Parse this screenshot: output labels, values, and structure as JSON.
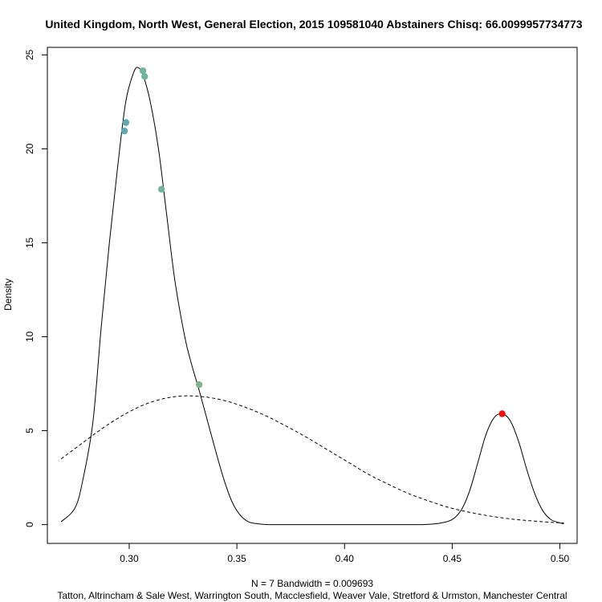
{
  "chart_data": {
    "type": "line",
    "title": "United Kingdom, North West, General Election, 2015 109581040 Abstainers Chisq: 66.0099957734773",
    "ylabel": "Density",
    "xlabel_line1": "N = 7   Bandwidth = 0.009693",
    "xlabel_line2": "Tatton, Altrincham & Sale West, Warrington South, Macclesfield, Weaver Vale, Stretford & Urmston, Manchester Central",
    "xlim": [
      0.262,
      0.508
    ],
    "ylim": [
      -1.0,
      25.4
    ],
    "x_ticks": [
      0.3,
      0.35,
      0.4,
      0.45,
      0.5
    ],
    "x_tick_labels": [
      "0.30",
      "0.35",
      "0.40",
      "0.45",
      "0.50"
    ],
    "y_ticks": [
      0,
      5,
      10,
      15,
      20,
      25
    ],
    "y_tick_labels": [
      "0",
      "5",
      "10",
      "15",
      "20",
      "25"
    ],
    "kde_solid": {
      "x": [
        0.2684,
        0.2749,
        0.2787,
        0.2832,
        0.287,
        0.2908,
        0.2946,
        0.2984,
        0.3022,
        0.3045,
        0.3068,
        0.3098,
        0.3136,
        0.3174,
        0.3212,
        0.3258,
        0.3288,
        0.3326,
        0.3364,
        0.3402,
        0.344,
        0.3478,
        0.3516,
        0.3554,
        0.3592,
        0.363,
        0.3668,
        0.3782,
        0.3973,
        0.4163,
        0.4353,
        0.4429,
        0.4497,
        0.4543,
        0.4581,
        0.4619,
        0.4657,
        0.4695,
        0.4733,
        0.4771,
        0.4809,
        0.4847,
        0.4885,
        0.4923,
        0.4961,
        0.5018
      ],
      "y": [
        0.15,
        0.9,
        2.5,
        5.5,
        10.5,
        15.0,
        19.0,
        22.5,
        24.1,
        24.3,
        23.8,
        22.5,
        20.0,
        16.5,
        13.0,
        10.0,
        8.6,
        7.1,
        5.5,
        3.9,
        2.4,
        1.2,
        0.5,
        0.15,
        0.05,
        0.01,
        0.0,
        0.0,
        0.0,
        0.0,
        0.0,
        0.05,
        0.25,
        0.8,
        1.8,
        3.3,
        4.8,
        5.7,
        5.9,
        5.5,
        4.4,
        2.9,
        1.6,
        0.7,
        0.25,
        0.04
      ]
    },
    "normal_dashed": {
      "x": [
        0.2684,
        0.2778,
        0.2873,
        0.2968,
        0.3063,
        0.3158,
        0.3253,
        0.3348,
        0.3443,
        0.3538,
        0.3633,
        0.3728,
        0.3823,
        0.3918,
        0.4013,
        0.4108,
        0.4203,
        0.4298,
        0.4393,
        0.4488,
        0.4583,
        0.4678,
        0.4773,
        0.4868,
        0.4963,
        0.5018
      ],
      "y": [
        3.5,
        4.3,
        5.1,
        5.8,
        6.35,
        6.7,
        6.85,
        6.8,
        6.6,
        6.25,
        5.8,
        5.25,
        4.65,
        4.0,
        3.35,
        2.7,
        2.15,
        1.65,
        1.25,
        0.9,
        0.65,
        0.45,
        0.3,
        0.2,
        0.12,
        0.09
      ]
    },
    "points": [
      {
        "x": 0.2985,
        "y": 21.4,
        "color": "#62a8b0"
      },
      {
        "x": 0.2978,
        "y": 20.95,
        "color": "#62a8b0"
      },
      {
        "x": 0.3064,
        "y": 24.15,
        "color": "#74b2a0"
      },
      {
        "x": 0.3072,
        "y": 23.85,
        "color": "#74b2a0"
      },
      {
        "x": 0.315,
        "y": 17.85,
        "color": "#74b2a0"
      },
      {
        "x": 0.3325,
        "y": 7.45,
        "color": "#84b38a"
      },
      {
        "x": 0.4732,
        "y": 5.9,
        "color": "#ee1111"
      }
    ]
  }
}
